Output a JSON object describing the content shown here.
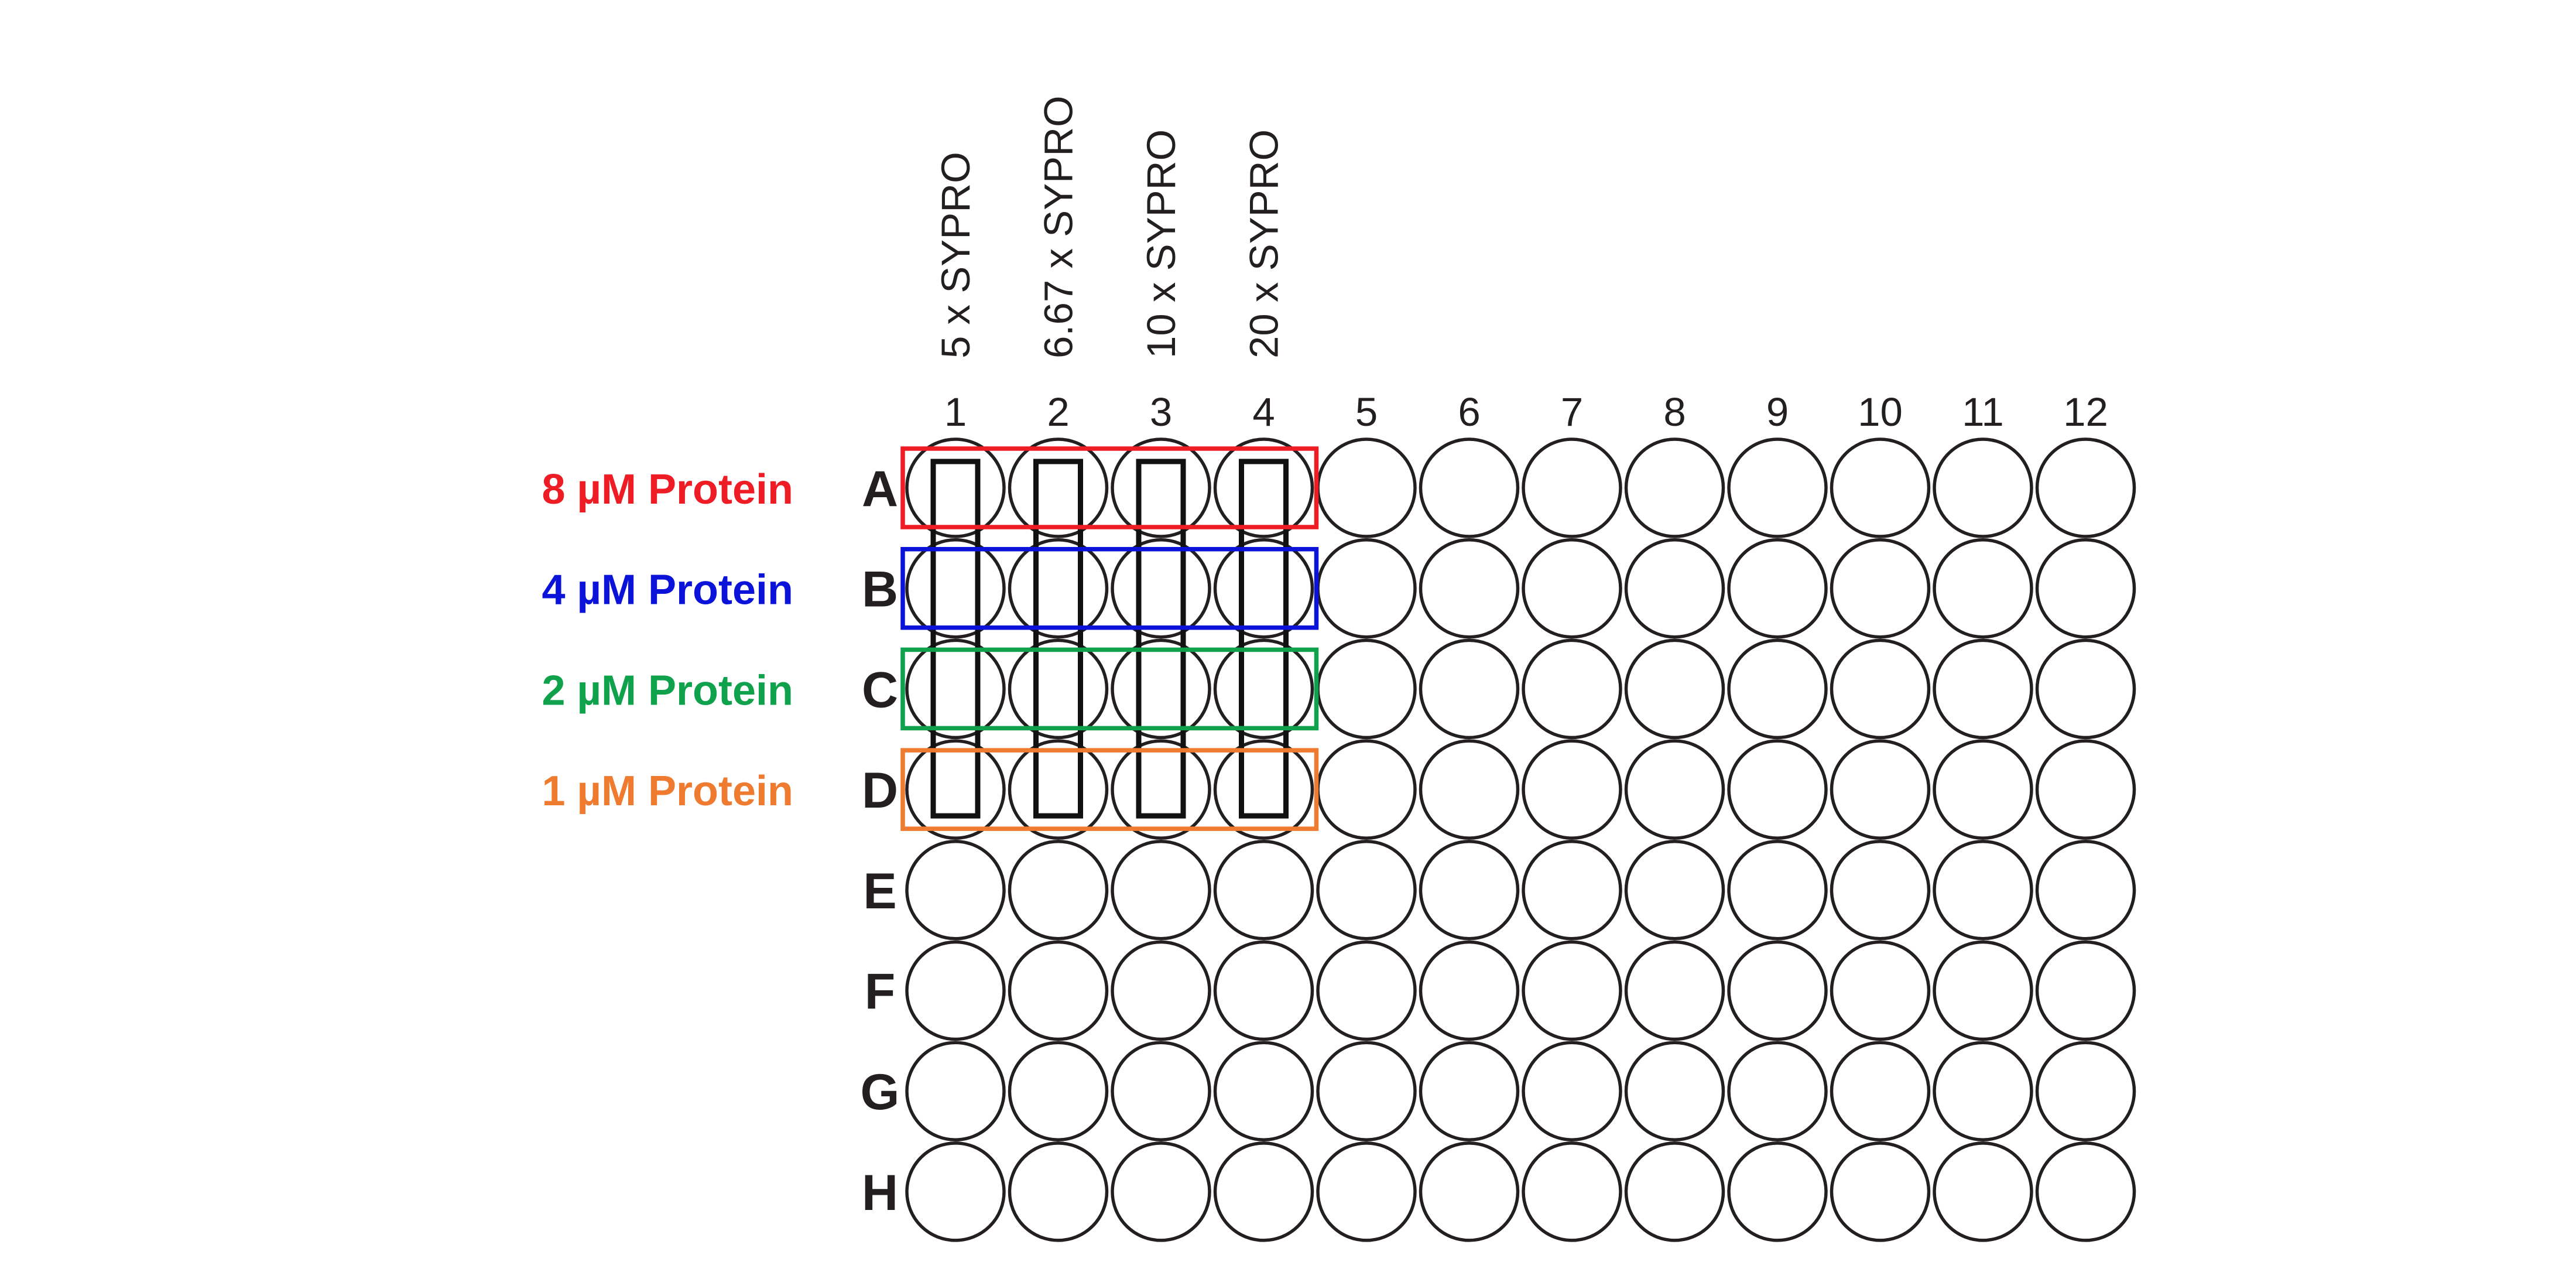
{
  "plate": {
    "columns": [
      "1",
      "2",
      "3",
      "4",
      "5",
      "6",
      "7",
      "8",
      "9",
      "10",
      "11",
      "12"
    ],
    "rows": [
      "A",
      "B",
      "C",
      "D",
      "E",
      "F",
      "G",
      "H"
    ],
    "well_color": "#ffffff",
    "outline_color": "#231f20"
  },
  "column_labels": [
    {
      "text": "5 x SYPRO",
      "column": "1"
    },
    {
      "text": "6.67 x SYPRO",
      "column": "2"
    },
    {
      "text": "10 x SYPRO",
      "column": "3"
    },
    {
      "text": "20 x SYPRO",
      "column": "4"
    }
  ],
  "column_box_color": "#111111",
  "row_labels": [
    {
      "text": "8 µM Protein",
      "row": "A",
      "color": "#ee1c24"
    },
    {
      "text": "4 µM Protein",
      "row": "B",
      "color": "#0b13d9"
    },
    {
      "text": "2 µM Protein",
      "row": "C",
      "color": "#0fa14b"
    },
    {
      "text": "1 µM Protein",
      "row": "D",
      "color": "#ee7b30"
    }
  ],
  "highlight": {
    "columns": [
      "1",
      "2",
      "3",
      "4"
    ],
    "rows": [
      "A",
      "B",
      "C",
      "D"
    ]
  }
}
